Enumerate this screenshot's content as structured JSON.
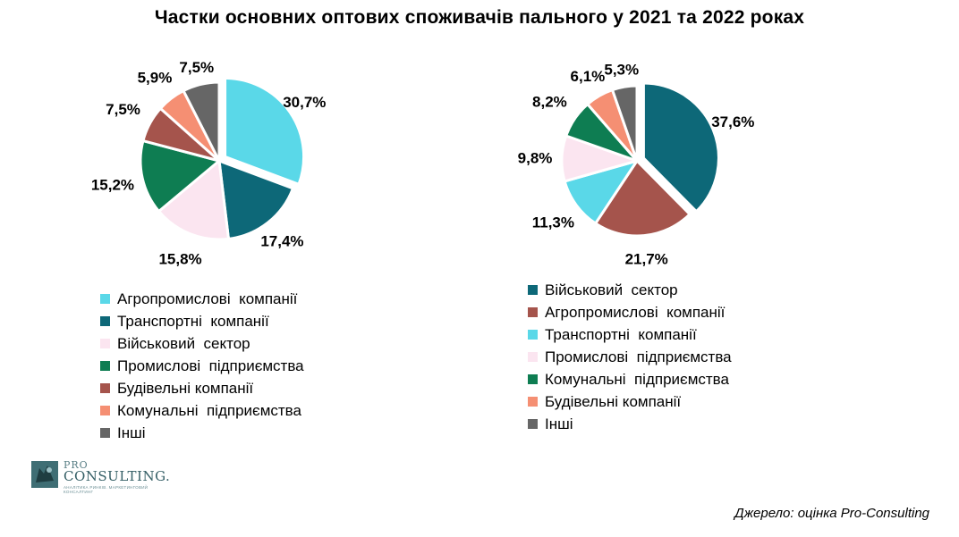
{
  "title": "Частки основних оптових споживачів пального у 2021 та 2022 роках",
  "source": "Джерело:  оцінка Pro-Consulting",
  "logo": {
    "pro": "PRO",
    "consulting": "CONSULTING.",
    "tagline": "АНАЛІТИКА РИНКІВ. МАРКЕТИНГОВИЙ КОНСАЛТИНГ"
  },
  "chart_data": [
    {
      "type": "pie",
      "year": "2021",
      "title": "",
      "slices": [
        {
          "label": "Агропромислові  компанії",
          "value": 30.7,
          "value_label": "30,7%",
          "color": "#5ad8e8"
        },
        {
          "label": "Транспортні  компанії",
          "value": 17.4,
          "value_label": "17,4%",
          "color": "#0d6878"
        },
        {
          "label": "Військовий  сектор",
          "value": 15.8,
          "value_label": "15,8%",
          "color": "#fbe5f0"
        },
        {
          "label": "Промислові  підприємства",
          "value": 15.2,
          "value_label": "15,2%",
          "color": "#0e7d52"
        },
        {
          "label": "Будівельні компанії",
          "value": 7.5,
          "value_label": "7,5%",
          "color": "#a5544c"
        },
        {
          "label": "Комунальні  підприємства",
          "value": 5.9,
          "value_label": "5,9%",
          "color": "#f58f73"
        },
        {
          "label": "Інші",
          "value": 7.5,
          "value_label": "7,5%",
          "color": "#666666"
        }
      ],
      "legend_position": "bottom"
    },
    {
      "type": "pie",
      "year": "2022",
      "title": "",
      "slices": [
        {
          "label": "Військовий  сектор",
          "value": 37.6,
          "value_label": "37,6%",
          "color": "#0d6878"
        },
        {
          "label": "Агропромислові  компанії",
          "value": 21.7,
          "value_label": "21,7%",
          "color": "#a5544c"
        },
        {
          "label": "Транспортні  компанії",
          "value": 11.3,
          "value_label": "11,3%",
          "color": "#5ad8e8"
        },
        {
          "label": "Промислові  підприємства",
          "value": 9.8,
          "value_label": "9,8%",
          "color": "#fbe5f0"
        },
        {
          "label": "Комунальні  підприємства",
          "value": 8.2,
          "value_label": "8,2%",
          "color": "#0e7d52"
        },
        {
          "label": "Будівельні компанії",
          "value": 6.1,
          "value_label": "6,1%",
          "color": "#f58f73"
        },
        {
          "label": "Інші",
          "value": 5.3,
          "value_label": "5,3%",
          "color": "#666666"
        }
      ],
      "legend_position": "bottom"
    }
  ]
}
